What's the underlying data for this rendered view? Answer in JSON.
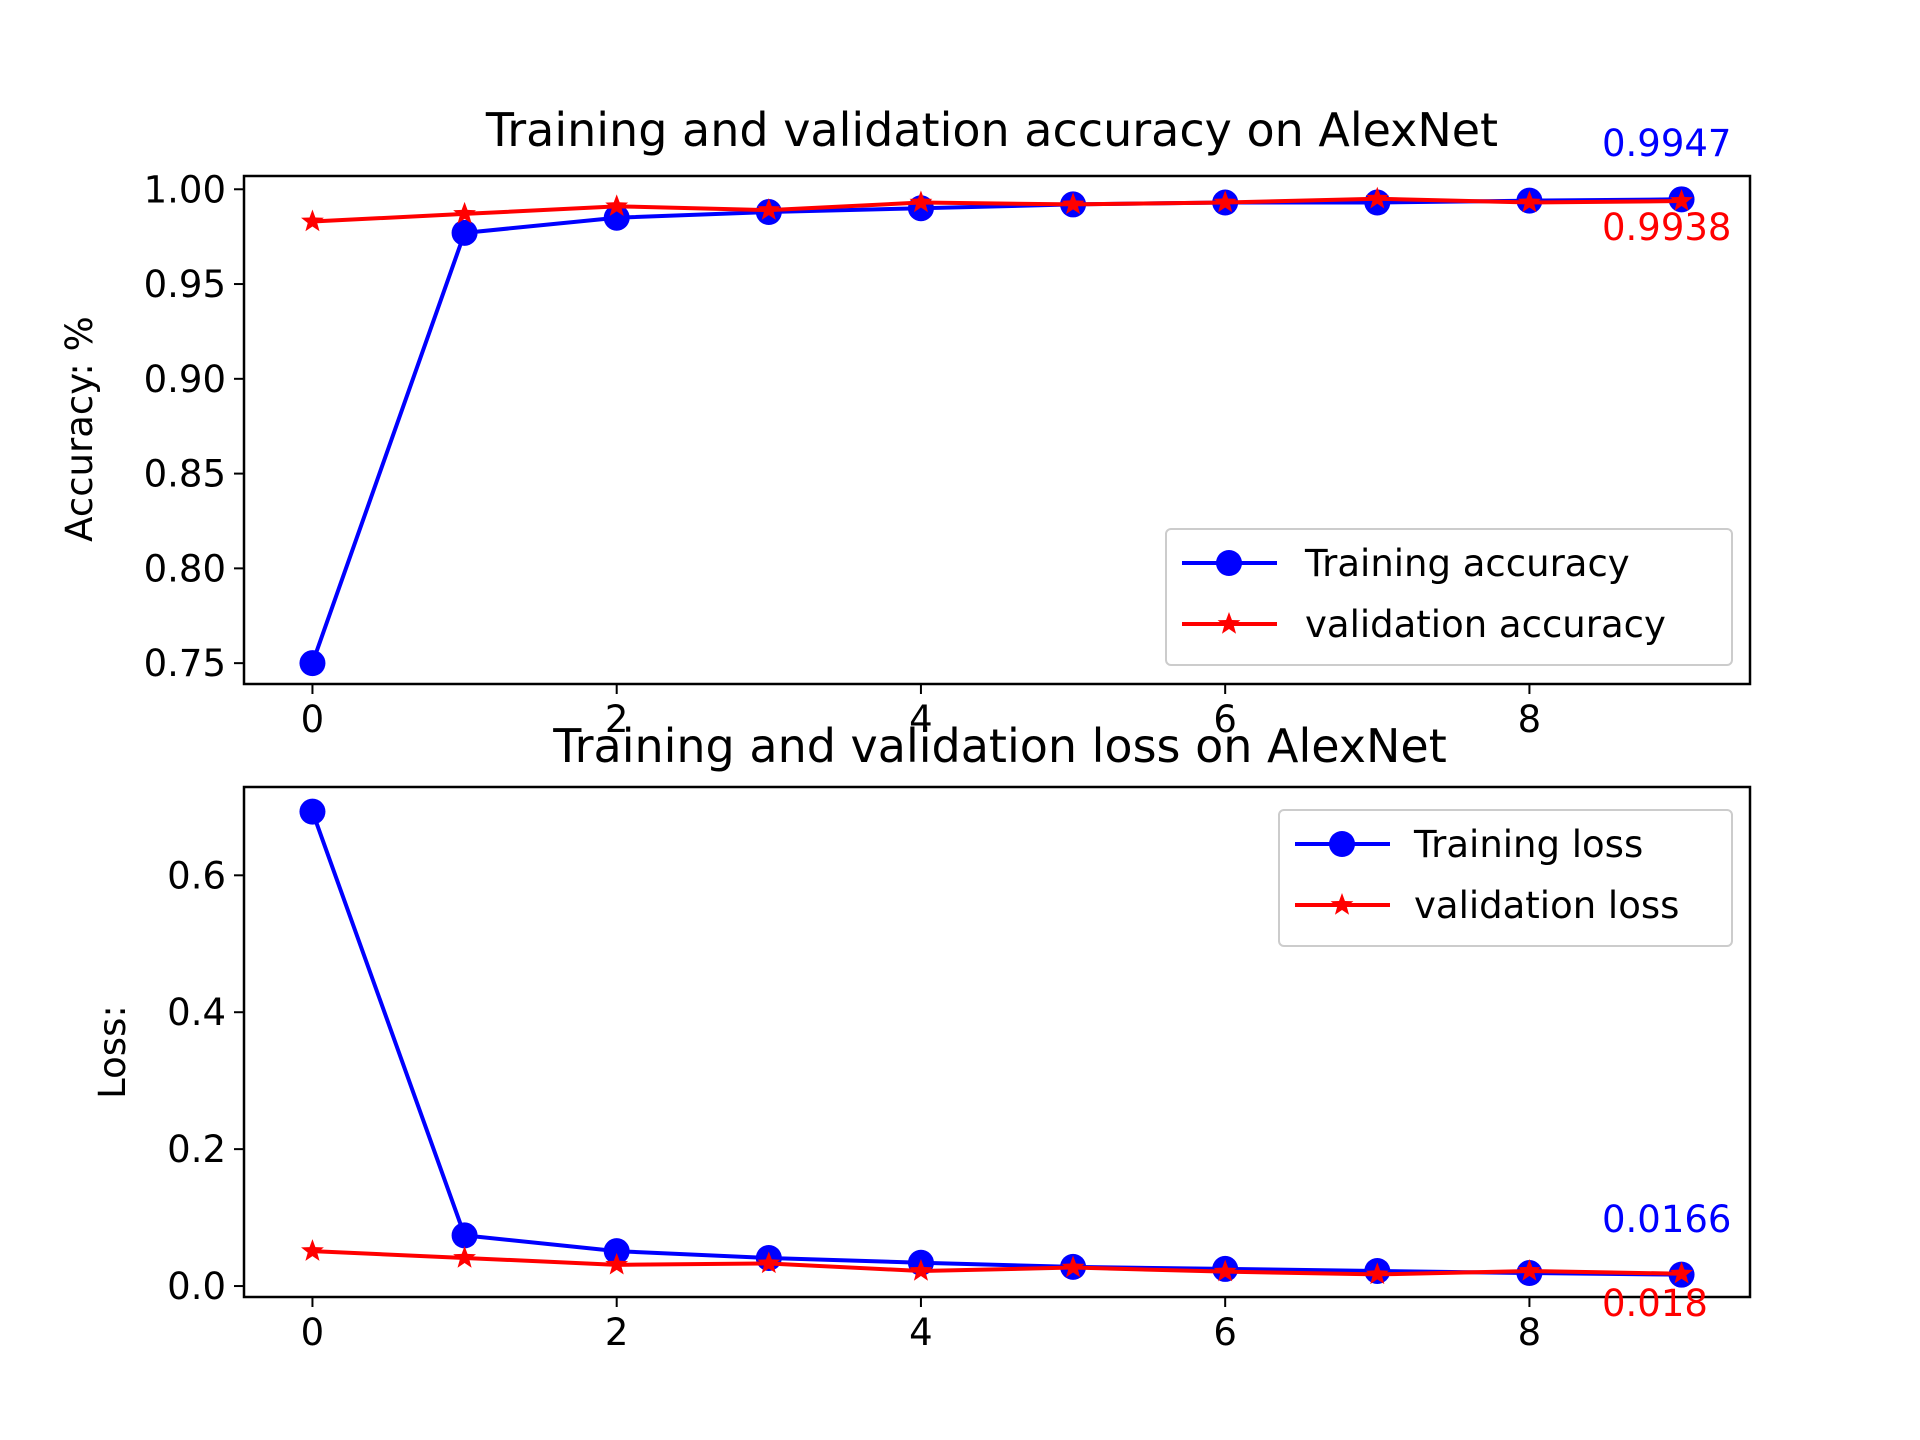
{
  "chart_data": [
    {
      "type": "line",
      "title": "Training and validation accuracy on AlexNet",
      "xlabel": "",
      "ylabel": "Accuracy: %",
      "xlim": [
        -0.45,
        9.45
      ],
      "ylim": [
        0.739,
        1.007
      ],
      "xticks": [
        "0",
        "2",
        "4",
        "6",
        "8"
      ],
      "xtick_values": [
        0,
        2,
        4,
        6,
        8
      ],
      "yticks": [
        "0.75",
        "0.80",
        "0.85",
        "0.90",
        "0.95",
        "1.00"
      ],
      "ytick_values": [
        0.75,
        0.8,
        0.85,
        0.9,
        0.95,
        1.0
      ],
      "x": [
        0,
        1,
        2,
        3,
        4,
        5,
        6,
        7,
        8,
        9
      ],
      "series": [
        {
          "name": "Training accuracy",
          "color": "#0000ff",
          "marker": "circle",
          "values": [
            0.75,
            0.977,
            0.985,
            0.988,
            0.99,
            0.992,
            0.993,
            0.993,
            0.994,
            0.9947
          ]
        },
        {
          "name": "validation accuracy",
          "color": "#ff0000",
          "marker": "star",
          "values": [
            0.983,
            0.987,
            0.991,
            0.989,
            0.993,
            0.992,
            0.993,
            0.995,
            0.993,
            0.9938
          ]
        }
      ],
      "legend": "lower right",
      "annotations": [
        {
          "text": "0.9947",
          "color": "#0000ff"
        },
        {
          "text": "0.9938",
          "color": "#ff0000"
        }
      ]
    },
    {
      "type": "line",
      "title": "Training and validation loss on AlexNet",
      "xlabel": "",
      "ylabel": "Loss:",
      "xlim": [
        -0.45,
        9.45
      ],
      "ylim": [
        -0.016,
        0.729
      ],
      "xticks": [
        "0",
        "2",
        "4",
        "6",
        "8"
      ],
      "xtick_values": [
        0,
        2,
        4,
        6,
        8
      ],
      "yticks": [
        "0.0",
        "0.2",
        "0.4",
        "0.6"
      ],
      "ytick_values": [
        0.0,
        0.2,
        0.4,
        0.6
      ],
      "x": [
        0,
        1,
        2,
        3,
        4,
        5,
        6,
        7,
        8,
        9
      ],
      "series": [
        {
          "name": "Training loss",
          "color": "#0000ff",
          "marker": "circle",
          "values": [
            0.693,
            0.074,
            0.051,
            0.041,
            0.034,
            0.028,
            0.025,
            0.022,
            0.019,
            0.0166
          ]
        },
        {
          "name": "validation loss",
          "color": "#ff0000",
          "marker": "star",
          "values": [
            0.051,
            0.041,
            0.031,
            0.033,
            0.022,
            0.027,
            0.021,
            0.017,
            0.022,
            0.018
          ]
        }
      ],
      "legend": "upper right",
      "annotations": [
        {
          "text": "0.0166",
          "color": "#0000ff"
        },
        {
          "text": "0.018",
          "color": "#ff0000"
        }
      ]
    }
  ]
}
